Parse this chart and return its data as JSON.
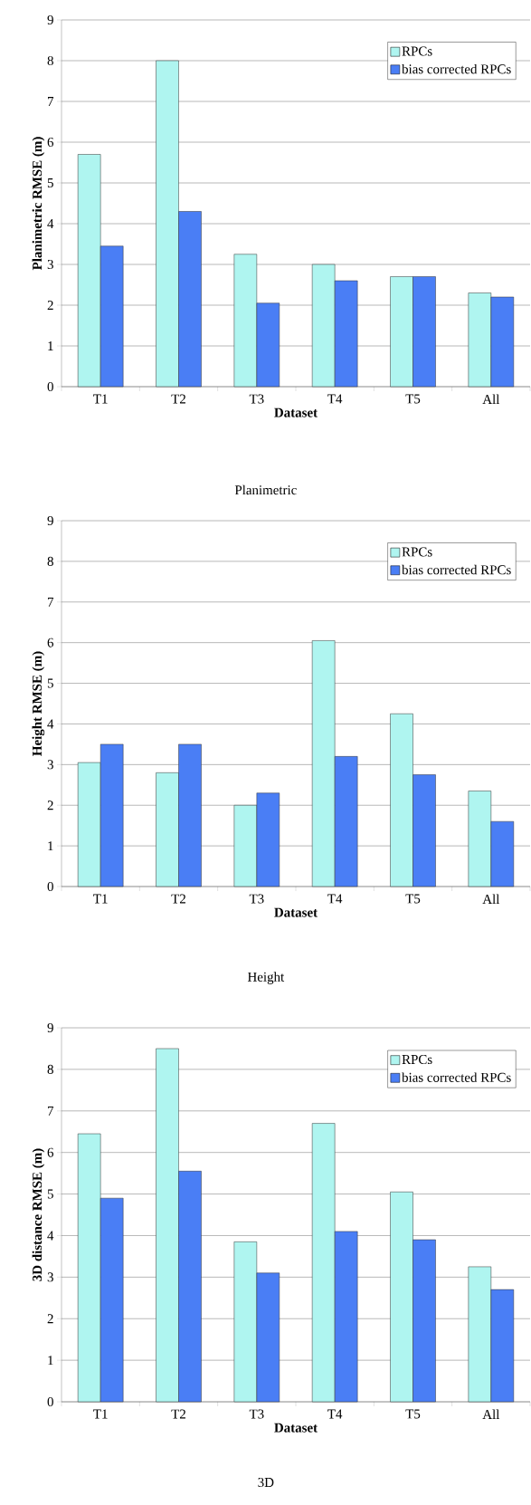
{
  "chart_data": [
    {
      "type": "bar",
      "title": "Planimetric",
      "xlabel": "Dataset",
      "ylabel": "Planimetric RMSE (m)",
      "categories": [
        "T1",
        "T2",
        "T3",
        "T4",
        "T5",
        "All"
      ],
      "series": [
        {
          "name": "RPCs",
          "color": "#aff5f0",
          "values": [
            5.7,
            8.0,
            3.25,
            3.0,
            2.7,
            2.3
          ]
        },
        {
          "name": "bias corrected RPCs",
          "color": "#4a7ef5",
          "values": [
            3.45,
            4.3,
            2.05,
            2.6,
            2.7,
            2.2
          ]
        }
      ],
      "ylim": [
        0,
        9
      ],
      "yticks": [
        0,
        1,
        2,
        3,
        4,
        5,
        6,
        7,
        8,
        9
      ],
      "grid": "y",
      "legend": "top right"
    },
    {
      "type": "bar",
      "title": "Height",
      "xlabel": "Dataset",
      "ylabel": "Height RMSE (m)",
      "categories": [
        "T1",
        "T2",
        "T3",
        "T4",
        "T5",
        "All"
      ],
      "series": [
        {
          "name": "RPCs",
          "color": "#aff5f0",
          "values": [
            3.05,
            2.8,
            2.0,
            6.05,
            4.25,
            2.35
          ]
        },
        {
          "name": "bias corrected RPCs",
          "color": "#4a7ef5",
          "values": [
            3.5,
            3.5,
            2.3,
            3.2,
            2.75,
            1.6
          ]
        }
      ],
      "ylim": [
        0,
        9
      ],
      "yticks": [
        0,
        1,
        2,
        3,
        4,
        5,
        6,
        7,
        8,
        9
      ],
      "grid": "y",
      "legend": "top right"
    },
    {
      "type": "bar",
      "title": "3D",
      "xlabel": "Dataset",
      "ylabel": "3D distance  RMSE (m)",
      "categories": [
        "T1",
        "T2",
        "T3",
        "T4",
        "T5",
        "All"
      ],
      "series": [
        {
          "name": "RPCs",
          "color": "#aff5f0",
          "values": [
            6.45,
            8.5,
            3.85,
            6.7,
            5.05,
            3.25
          ]
        },
        {
          "name": "bias corrected RPCs",
          "color": "#4a7ef5",
          "values": [
            4.9,
            5.55,
            3.1,
            4.1,
            3.9,
            2.7
          ]
        }
      ],
      "ylim": [
        0,
        9
      ],
      "yticks": [
        0,
        1,
        2,
        3,
        4,
        5,
        6,
        7,
        8,
        9
      ],
      "grid": "y",
      "legend": "top right"
    }
  ]
}
